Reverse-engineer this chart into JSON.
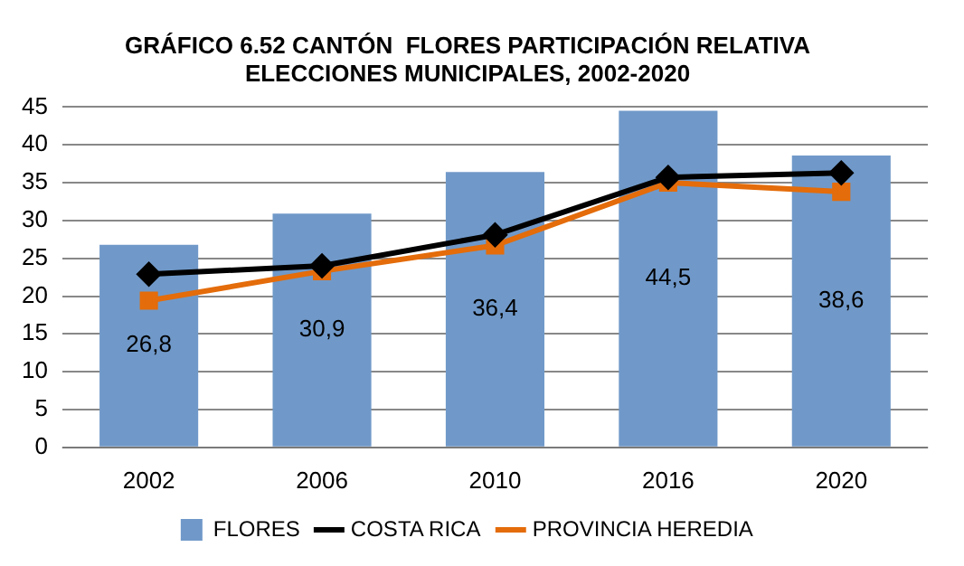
{
  "chart_data": {
    "type": "bar",
    "title": [
      "GRÁFICO 6.52 CANTÓN  FLORES PARTICIPACIÓN RELATIVA",
      "ELECCIONES MUNICIPALES, 2002-2020"
    ],
    "categories": [
      "2002",
      "2006",
      "2010",
      "2016",
      "2020"
    ],
    "series": [
      {
        "name": "FLORES",
        "color": "#7099c9",
        "values": [
          26.8,
          30.9,
          36.4,
          44.5,
          38.6
        ],
        "value_labels": [
          "26,8",
          "30,9",
          "36,4",
          "44,5",
          "38,6"
        ]
      },
      {
        "name": "COSTA RICA",
        "type": "line",
        "color": "#000000",
        "marker": "diamond",
        "values": [
          22.9,
          24.0,
          28.1,
          35.7,
          36.3
        ]
      },
      {
        "name": "PROVINCIA HEREDIA",
        "type": "line",
        "color": "#e46c0a",
        "marker": "square",
        "values": [
          19.4,
          23.3,
          26.7,
          35.0,
          33.8
        ]
      }
    ],
    "ylim": [
      0,
      45
    ],
    "yticks": [
      0,
      5,
      10,
      15,
      20,
      25,
      30,
      35,
      40,
      45
    ],
    "grid": "y",
    "legend": "bottom"
  }
}
